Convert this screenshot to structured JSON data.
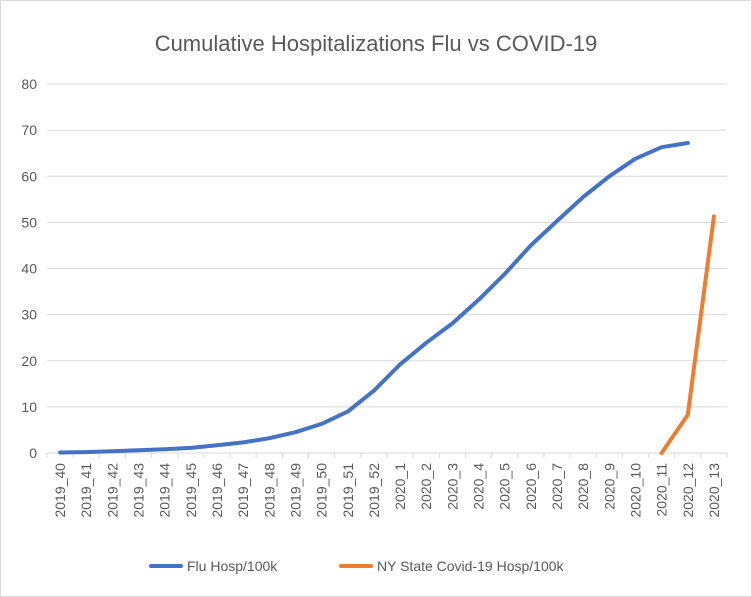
{
  "chart_data": {
    "type": "line",
    "title": "Cumulative Hospitalizations Flu vs COVID-19",
    "xlabel": "",
    "ylabel": "",
    "ylim": [
      0,
      80
    ],
    "yticks": [
      0,
      10,
      20,
      30,
      40,
      50,
      60,
      70,
      80
    ],
    "grid": true,
    "legend_position": "bottom",
    "categories": [
      "2019_40",
      "2019_41",
      "2019_42",
      "2019_43",
      "2019_44",
      "2019_45",
      "2019_46",
      "2019_47",
      "2019_48",
      "2019_49",
      "2019_50",
      "2019_51",
      "2019_52",
      "2020_1",
      "2020_2",
      "2020_3",
      "2020_4",
      "2020_5",
      "2020_6",
      "2020_7",
      "2020_8",
      "2020_9",
      "2020_10",
      "2020_11",
      "2020_12",
      "2020_13"
    ],
    "series": [
      {
        "name": "Flu Hosp/100k",
        "color": "#4472C4",
        "values": [
          0.1,
          0.2,
          0.4,
          0.6,
          0.8,
          1.1,
          1.7,
          2.3,
          3.2,
          4.5,
          6.3,
          9.0,
          13.5,
          19.2,
          23.9,
          28.1,
          33.2,
          38.8,
          45.0,
          50.3,
          55.5,
          60.0,
          63.8,
          66.3,
          67.2,
          null
        ]
      },
      {
        "name": "NY State Covid-19 Hosp/100k",
        "color": "#ED7D31",
        "values": [
          null,
          null,
          null,
          null,
          null,
          null,
          null,
          null,
          null,
          null,
          null,
          null,
          null,
          null,
          null,
          null,
          null,
          null,
          null,
          null,
          null,
          null,
          null,
          0,
          8.3,
          51.3
        ]
      }
    ]
  }
}
